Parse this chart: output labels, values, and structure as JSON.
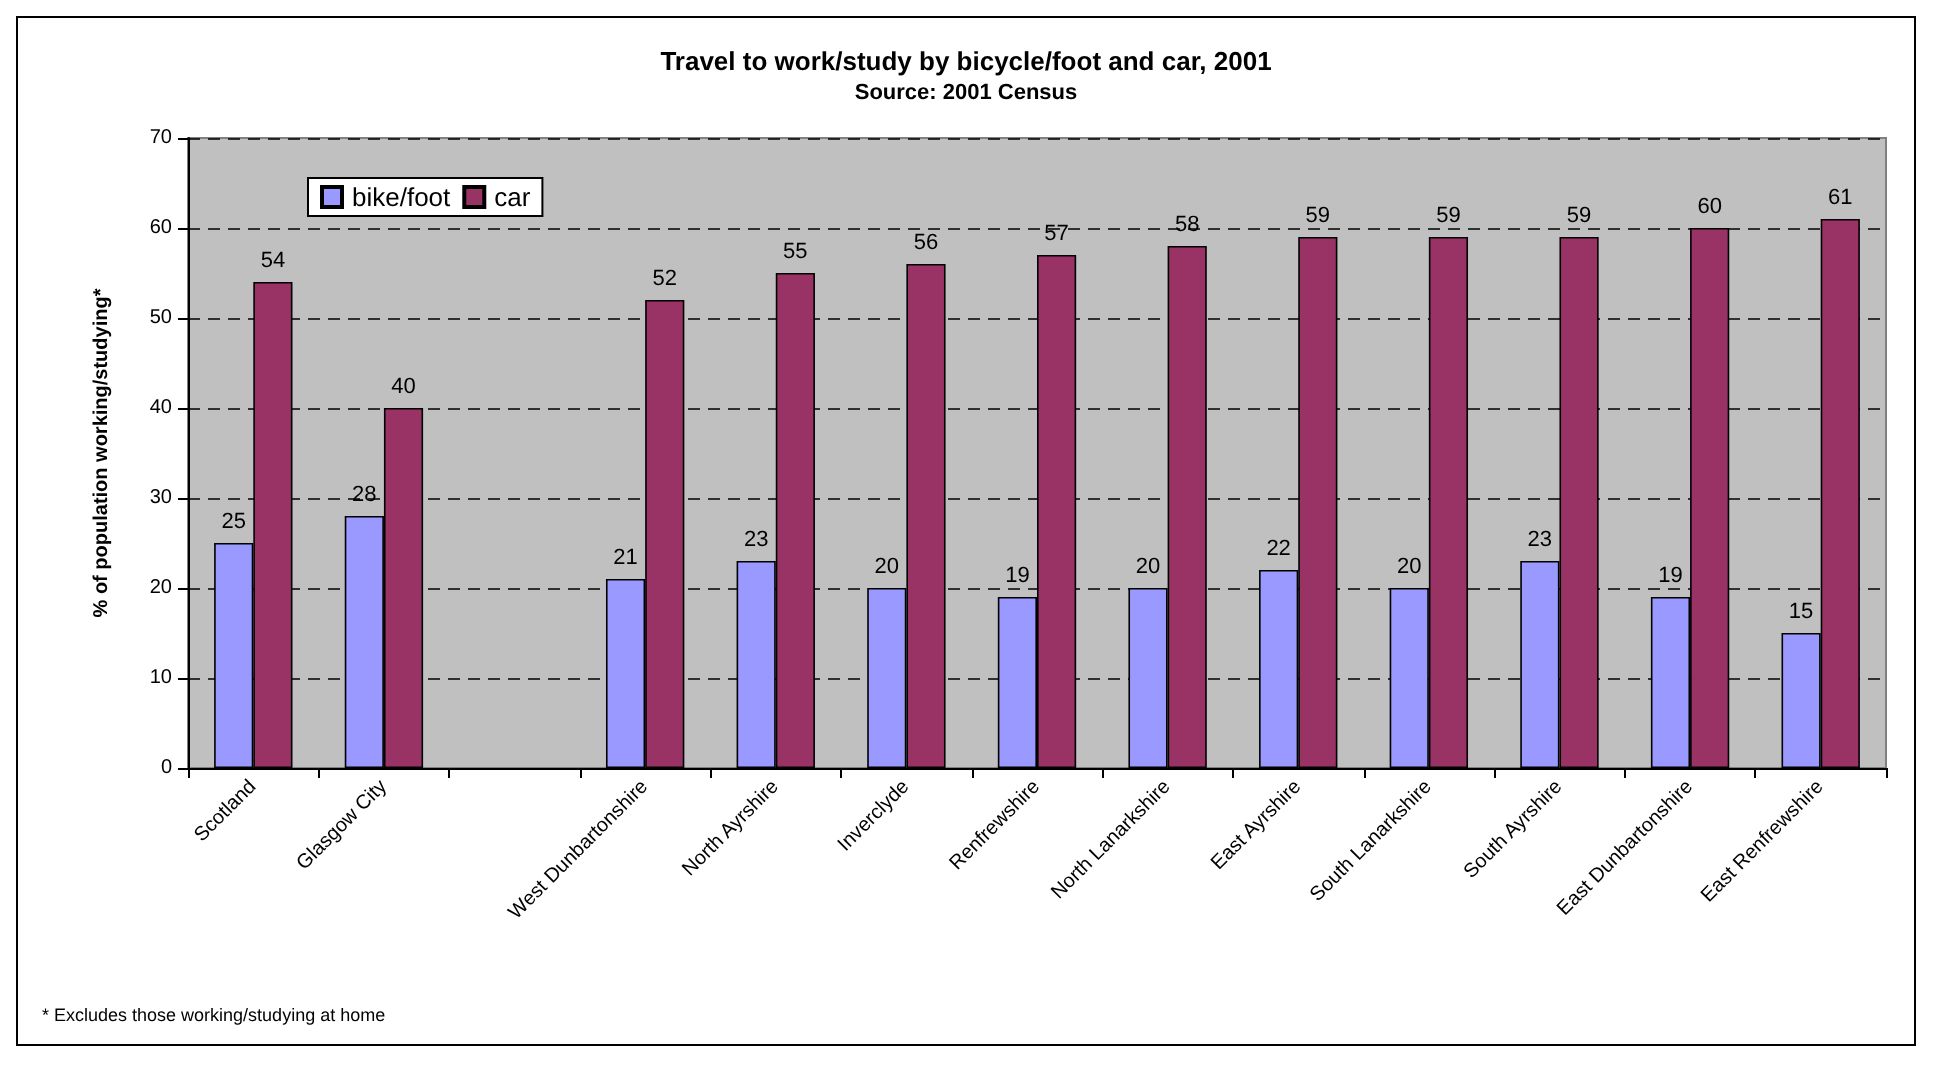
{
  "chart_data": {
    "type": "bar",
    "title": "Travel to work/study by bicycle/foot and car, 2001",
    "subtitle": "Source: 2001 Census",
    "ylabel": "% of population working/studying*",
    "categories": [
      "Scotland",
      "Glasgow City",
      null,
      "West Dunbartonshire",
      "North Ayrshire",
      "Inverclyde",
      "Renfrewshire",
      "North Lanarkshire",
      "East Ayrshire",
      "South Lanarkshire",
      "South Ayrshire",
      "East Dunbartonshire",
      "East Renfrewshire"
    ],
    "series": [
      {
        "name": "bike/foot",
        "color": "#9999ff",
        "values": [
          25,
          28,
          null,
          21,
          23,
          20,
          19,
          20,
          22,
          20,
          23,
          19,
          15
        ]
      },
      {
        "name": "car",
        "color": "#993366",
        "values": [
          54,
          40,
          null,
          52,
          55,
          56,
          57,
          58,
          59,
          59,
          59,
          60,
          61
        ]
      }
    ],
    "ylim": [
      0,
      70
    ],
    "yticks": [
      0,
      10,
      20,
      30,
      40,
      50,
      60,
      70
    ],
    "grid": "y",
    "legend": "top left",
    "data_labels": true,
    "annotations": [
      "* Excludes those working/studying at home"
    ]
  }
}
